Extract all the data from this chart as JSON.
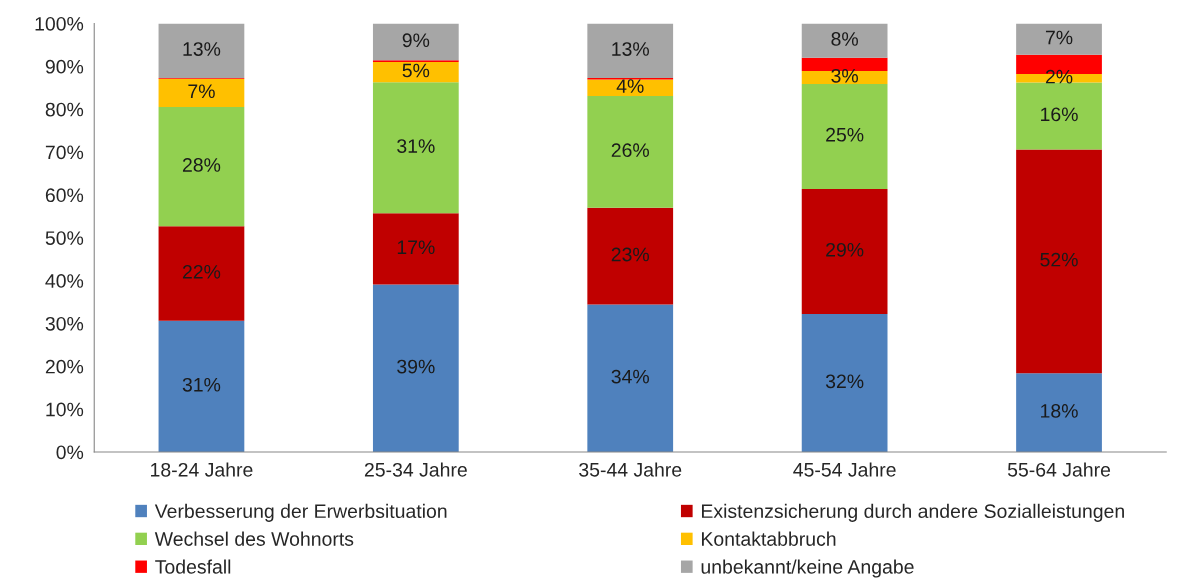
{
  "chart_data": {
    "type": "bar",
    "stacked": true,
    "categories": [
      "18-24 Jahre",
      "25-34 Jahre",
      "35-44 Jahre",
      "45-54 Jahre",
      "55-64 Jahre"
    ],
    "series": [
      {
        "name": "Verbesserung der Erwerbsituation",
        "color": "#4f81bd",
        "values": [
          30.6,
          39.1,
          34.4,
          32.2,
          18.4
        ],
        "value_labels": [
          "31%",
          "39%",
          "34%",
          "32%",
          "18%"
        ]
      },
      {
        "name": "Existenzsicherung durch andere Sozialleistungen",
        "color": "#c00000",
        "values": [
          22.1,
          16.6,
          22.6,
          29.2,
          52.2
        ],
        "value_labels": [
          "22%",
          "17%",
          "23%",
          "29%",
          "52%"
        ]
      },
      {
        "name": "Wechsel des Wohnorts",
        "color": "#92d050",
        "values": [
          27.8,
          30.6,
          26.1,
          24.5,
          15.6
        ],
        "value_labels": [
          "28%",
          "31%",
          "26%",
          "25%",
          "16%"
        ]
      },
      {
        "name": "Kontaktabbruch",
        "color": "#ffc000",
        "values": [
          6.6,
          4.7,
          3.8,
          3.0,
          2.0
        ],
        "value_labels": [
          "7%",
          "5%",
          "4%",
          "3%",
          "2%"
        ]
      },
      {
        "name": "Todesfall",
        "color": "#ff0000",
        "values": [
          0.2,
          0.4,
          0.4,
          3.1,
          4.5
        ],
        "value_labels": [
          null,
          null,
          null,
          null,
          null
        ]
      },
      {
        "name": "unbekannt/keine Angabe",
        "color": "#a6a6a6",
        "values": [
          12.7,
          8.6,
          12.7,
          8.0,
          7.3
        ],
        "value_labels": [
          "13%",
          "9%",
          "13%",
          "8%",
          "7%"
        ]
      }
    ],
    "ylim": [
      0,
      100
    ],
    "yticks": [
      {
        "value": 0,
        "label": "0%"
      },
      {
        "value": 10,
        "label": "10%"
      },
      {
        "value": 20,
        "label": "20%"
      },
      {
        "value": 30,
        "label": "30%"
      },
      {
        "value": 40,
        "label": "40%"
      },
      {
        "value": 50,
        "label": "50%"
      },
      {
        "value": 60,
        "label": "60%"
      },
      {
        "value": 70,
        "label": "70%"
      },
      {
        "value": 80,
        "label": "80%"
      },
      {
        "value": 90,
        "label": "90%"
      },
      {
        "value": 100,
        "label": "100%"
      }
    ],
    "legend": "bottom"
  }
}
